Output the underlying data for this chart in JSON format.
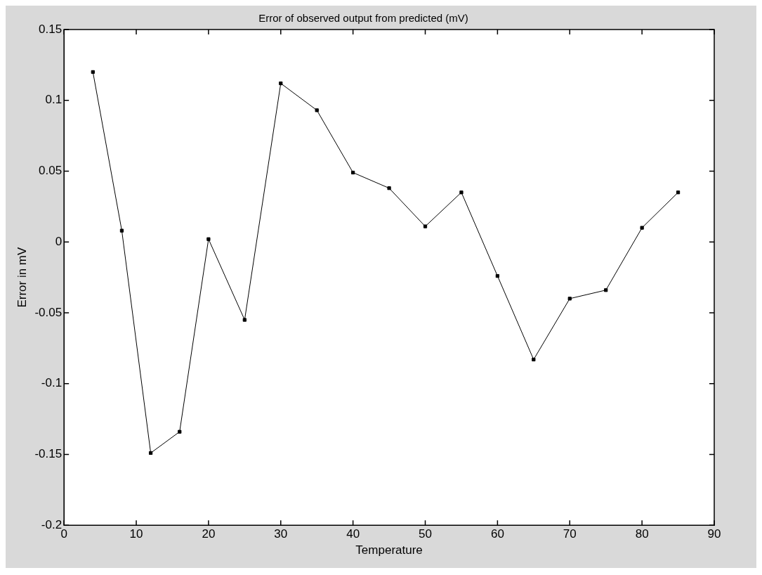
{
  "chart_data": {
    "type": "line",
    "title": "Error of observed output from predicted (mV)",
    "xlabel": "Temperature",
    "ylabel": "Error in mV",
    "x": [
      4,
      8,
      12,
      16,
      20,
      25,
      30,
      35,
      40,
      45,
      50,
      55,
      60,
      65,
      70,
      75,
      80,
      85
    ],
    "series": [
      {
        "color": "#000000",
        "values": [
          0.12,
          0.008,
          -0.149,
          -0.134,
          0.002,
          -0.055,
          0.112,
          0.093,
          0.049,
          0.038,
          0.011,
          0.035,
          -0.024,
          -0.083,
          -0.04,
          -0.034,
          0.01,
          0.035
        ]
      }
    ],
    "xlim": [
      0,
      90
    ],
    "xticks": [
      0,
      10,
      20,
      30,
      40,
      50,
      60,
      70,
      80,
      90
    ],
    "ylim": [
      -0.2,
      0.15
    ],
    "yticks": [
      -0.2,
      -0.15,
      -0.1,
      -0.05,
      0,
      0.05,
      0.1,
      0.15
    ],
    "marker": "square",
    "line_style": "solid"
  }
}
